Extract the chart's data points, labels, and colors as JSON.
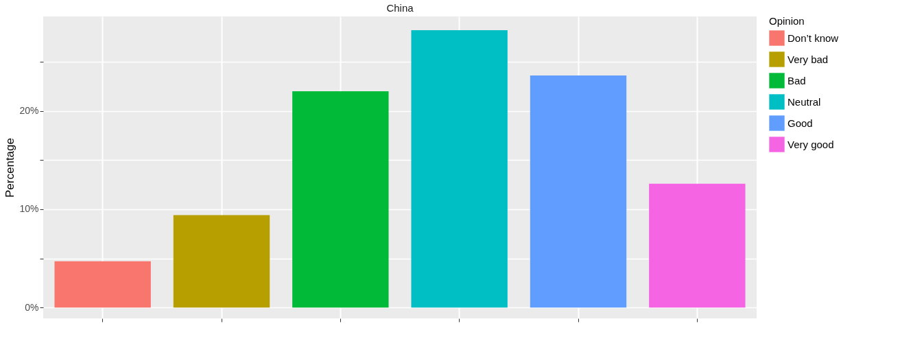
{
  "chart_data": {
    "type": "bar",
    "title": "China",
    "ylabel": "Percentage",
    "legend_title": "Opinion",
    "categories": [
      null,
      null,
      null,
      null,
      null,
      null
    ],
    "series": [
      {
        "name": "Don’t know",
        "color": "#f8766d",
        "values": [
          4.7,
          null,
          null,
          null,
          null,
          null
        ]
      },
      {
        "name": "Very bad",
        "color": "#b79f00",
        "values": [
          null,
          9.4,
          null,
          null,
          null,
          null
        ]
      },
      {
        "name": "Bad",
        "color": "#00ba38",
        "values": [
          null,
          null,
          22.0,
          null,
          null,
          null
        ]
      },
      {
        "name": "Neutral",
        "color": "#00bfc4",
        "values": [
          null,
          null,
          null,
          28.2,
          null,
          null
        ]
      },
      {
        "name": "Good",
        "color": "#619cff",
        "values": [
          null,
          null,
          null,
          null,
          23.6,
          null
        ]
      },
      {
        "name": "Very good",
        "color": "#f564e3",
        "values": [
          null,
          null,
          null,
          null,
          null,
          12.6
        ]
      }
    ],
    "ylim": [
      -1.1,
      29.6
    ],
    "yticks": [
      {
        "value": 0,
        "label": "0%"
      },
      {
        "value": 5,
        "label": null
      },
      {
        "value": 10,
        "label": "10%"
      },
      {
        "value": 15,
        "label": null
      },
      {
        "value": 20,
        "label": "20%"
      },
      {
        "value": 25,
        "label": null
      }
    ],
    "grid": true,
    "legend": "right",
    "tick_labels": "y"
  }
}
